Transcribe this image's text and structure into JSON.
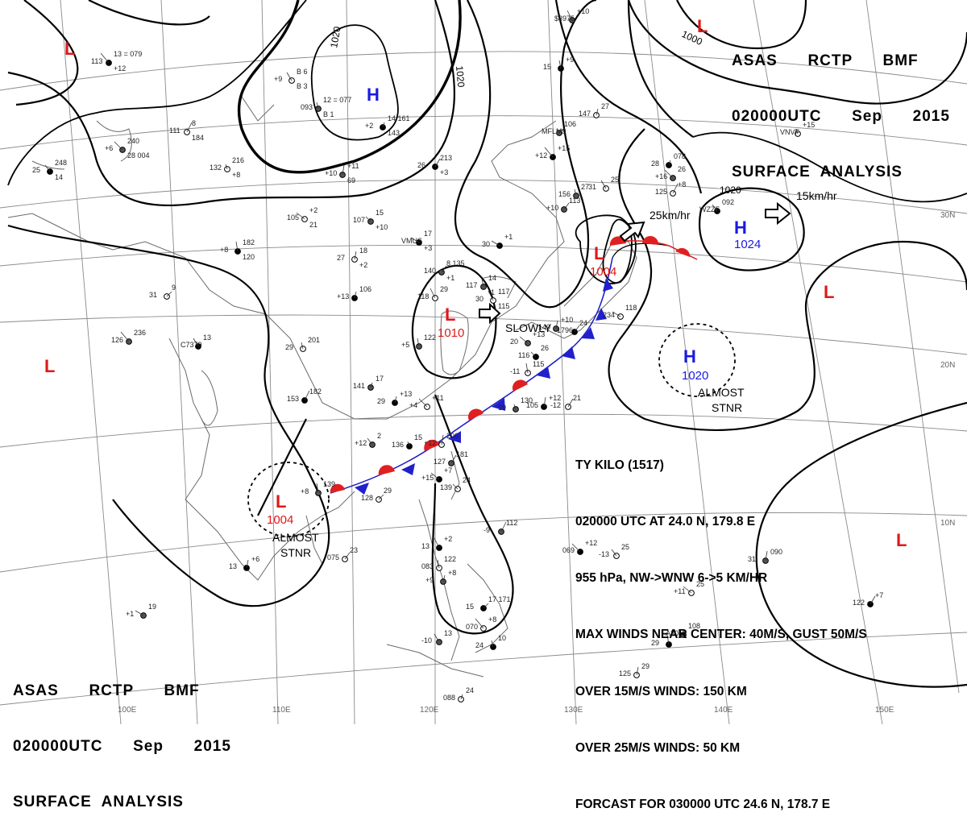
{
  "header": {
    "agency": "ASAS      RCTP      BMF",
    "time": "020000UTC      Sep      2015",
    "product": "SURFACE  ANALYSIS"
  },
  "typhoon_info": {
    "line1": "TY KILO (1517)",
    "line2": "020000 UTC AT 24.0 N, 179.8 E",
    "line3": "955 hPa, NW->WNW 6->5 KM/HR",
    "line4": "MAX WINDS NEAR CENTER: 40M/S, GUST 50M/S",
    "line5": "OVER 15M/S WINDS: 150 KM",
    "line6": "OVER 25M/S WINDS: 50 KM",
    "line7": "FORCAST FOR 030000 UTC 24.6 N, 178.7 E"
  },
  "longitudes": [
    "100E",
    "110E",
    "120E",
    "130E",
    "140E",
    "150E"
  ],
  "latitudes": [
    "30N",
    "20N",
    "10N"
  ],
  "isobars": [
    "1020",
    "1020",
    "1000",
    "1020"
  ],
  "pressure_systems": {
    "low_china": {
      "symbol": "L",
      "value": "1010"
    },
    "low_japan": {
      "symbol": "L",
      "value": "1004"
    },
    "low_vietnam": {
      "symbol": "L",
      "value": "1004"
    },
    "high_pacific": {
      "symbol": "H",
      "value": "1024"
    },
    "high_south": {
      "symbol": "H",
      "value": "1020"
    },
    "high_mongolia": {
      "symbol": "H",
      "value": ""
    },
    "low_nw": {
      "symbol": "L",
      "value": ""
    },
    "low_ne": {
      "symbol": "L",
      "value": ""
    },
    "low_west": {
      "symbol": "L",
      "value": ""
    },
    "low_east_mid": {
      "symbol": "L",
      "value": ""
    },
    "low_east_south": {
      "symbol": "L",
      "value": ""
    }
  },
  "motions": {
    "japan_low": "25km/hr",
    "pacific_high": "15km/hr",
    "china_low": "SLOWLY",
    "south_high_1": "ALMOST",
    "south_high_2": "STNR",
    "viet_low_1": "ALMOST",
    "viet_low_2": "STNR"
  },
  "station_labels": [
    "13 = 079",
    "B 6",
    "12 = 077",
    "14 161",
    "8",
    "240",
    "248",
    "216",
    "+11",
    "213",
    "+2",
    "15",
    "182",
    "18",
    "8 135",
    "17",
    "117",
    "14",
    "106",
    "9",
    "236",
    "13",
    "201",
    "17",
    "182",
    "+11",
    "2",
    "15",
    "206",
    "181",
    "+7",
    "24",
    "139",
    "+6",
    "23",
    "19",
    "+2",
    "122",
    "+8",
    "17 171",
    "+8",
    "13",
    "10",
    "24",
    "112",
    "+12",
    "25",
    "130",
    "+12",
    "21",
    "+13",
    "26",
    "115",
    "+10",
    "24",
    "118",
    "+10",
    "+9",
    "27",
    "106",
    "+15",
    "25",
    "27",
    "078",
    "+8",
    "26",
    "092",
    "+15",
    "090",
    "+7",
    "25",
    "108",
    "+13",
    "29",
    "113",
    "+1",
    "29",
    "122",
    "+13",
    "29",
    "113",
    "+9",
    "093",
    "+2",
    "111",
    "+6",
    "25",
    "132",
    "+10",
    "26",
    "105",
    "107",
    "+8",
    "27",
    "140",
    "VMUS",
    "30",
    "117",
    "+13",
    "31",
    "126",
    "C7379",
    "29",
    "141",
    "153",
    "+4",
    "+12",
    "136",
    "+12",
    "127",
    "+15",
    "139",
    "+8",
    "13",
    "075",
    "+1",
    "13",
    "083",
    "+9",
    "15",
    "070",
    "-10",
    "24",
    "088",
    "-9",
    "069",
    "-13",
    "19",
    "105",
    "-12",
    "20",
    "116",
    "-11",
    "140",
    "1796",
    "234",
    "$3975",
    "15",
    "147",
    "MFLM9",
    "+12",
    "31",
    "156",
    "28",
    "125",
    "+16",
    "WZZF",
    "VNVF",
    "31",
    "122",
    "+11",
    "A3015",
    "29",
    "125",
    "+10",
    "30",
    "118",
    "+5",
    "29",
    "128",
    "+12",
    "B 3",
    "B 1",
    "143",
    "184",
    "28 004",
    "14",
    "+8",
    "69",
    "+3",
    "21",
    "+10",
    "120",
    "+2",
    "+1",
    "+3",
    "115",
    "-1"
  ]
}
